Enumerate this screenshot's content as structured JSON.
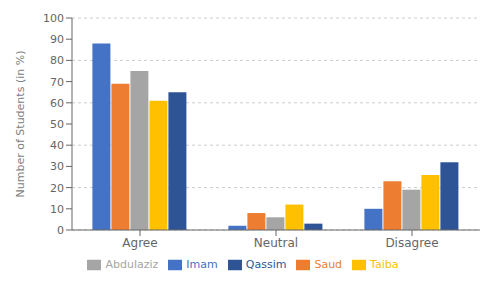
{
  "chart_data": {
    "type": "bar",
    "categories": [
      "Agree",
      "Neutral",
      "Disagree"
    ],
    "series": [
      {
        "name": "Imam",
        "color": "#4472C4",
        "values": [
          88,
          2,
          10
        ]
      },
      {
        "name": "Saud",
        "color": "#ED7D31",
        "values": [
          69,
          8,
          23
        ]
      },
      {
        "name": "Abdulaziz",
        "color": "#A5A5A5",
        "values": [
          75,
          6,
          19
        ]
      },
      {
        "name": "Taiba",
        "color": "#FFC000",
        "values": [
          61,
          12,
          26
        ]
      },
      {
        "name": "Qassim",
        "color": "#2F5496",
        "values": [
          65,
          3,
          32
        ]
      }
    ],
    "ylabel": "Number of Students (in %)",
    "ylim": [
      0,
      100
    ],
    "yticks": [
      0,
      10,
      20,
      30,
      40,
      50,
      60,
      70,
      80,
      90,
      100
    ],
    "grid": true,
    "legend": "bottom"
  }
}
